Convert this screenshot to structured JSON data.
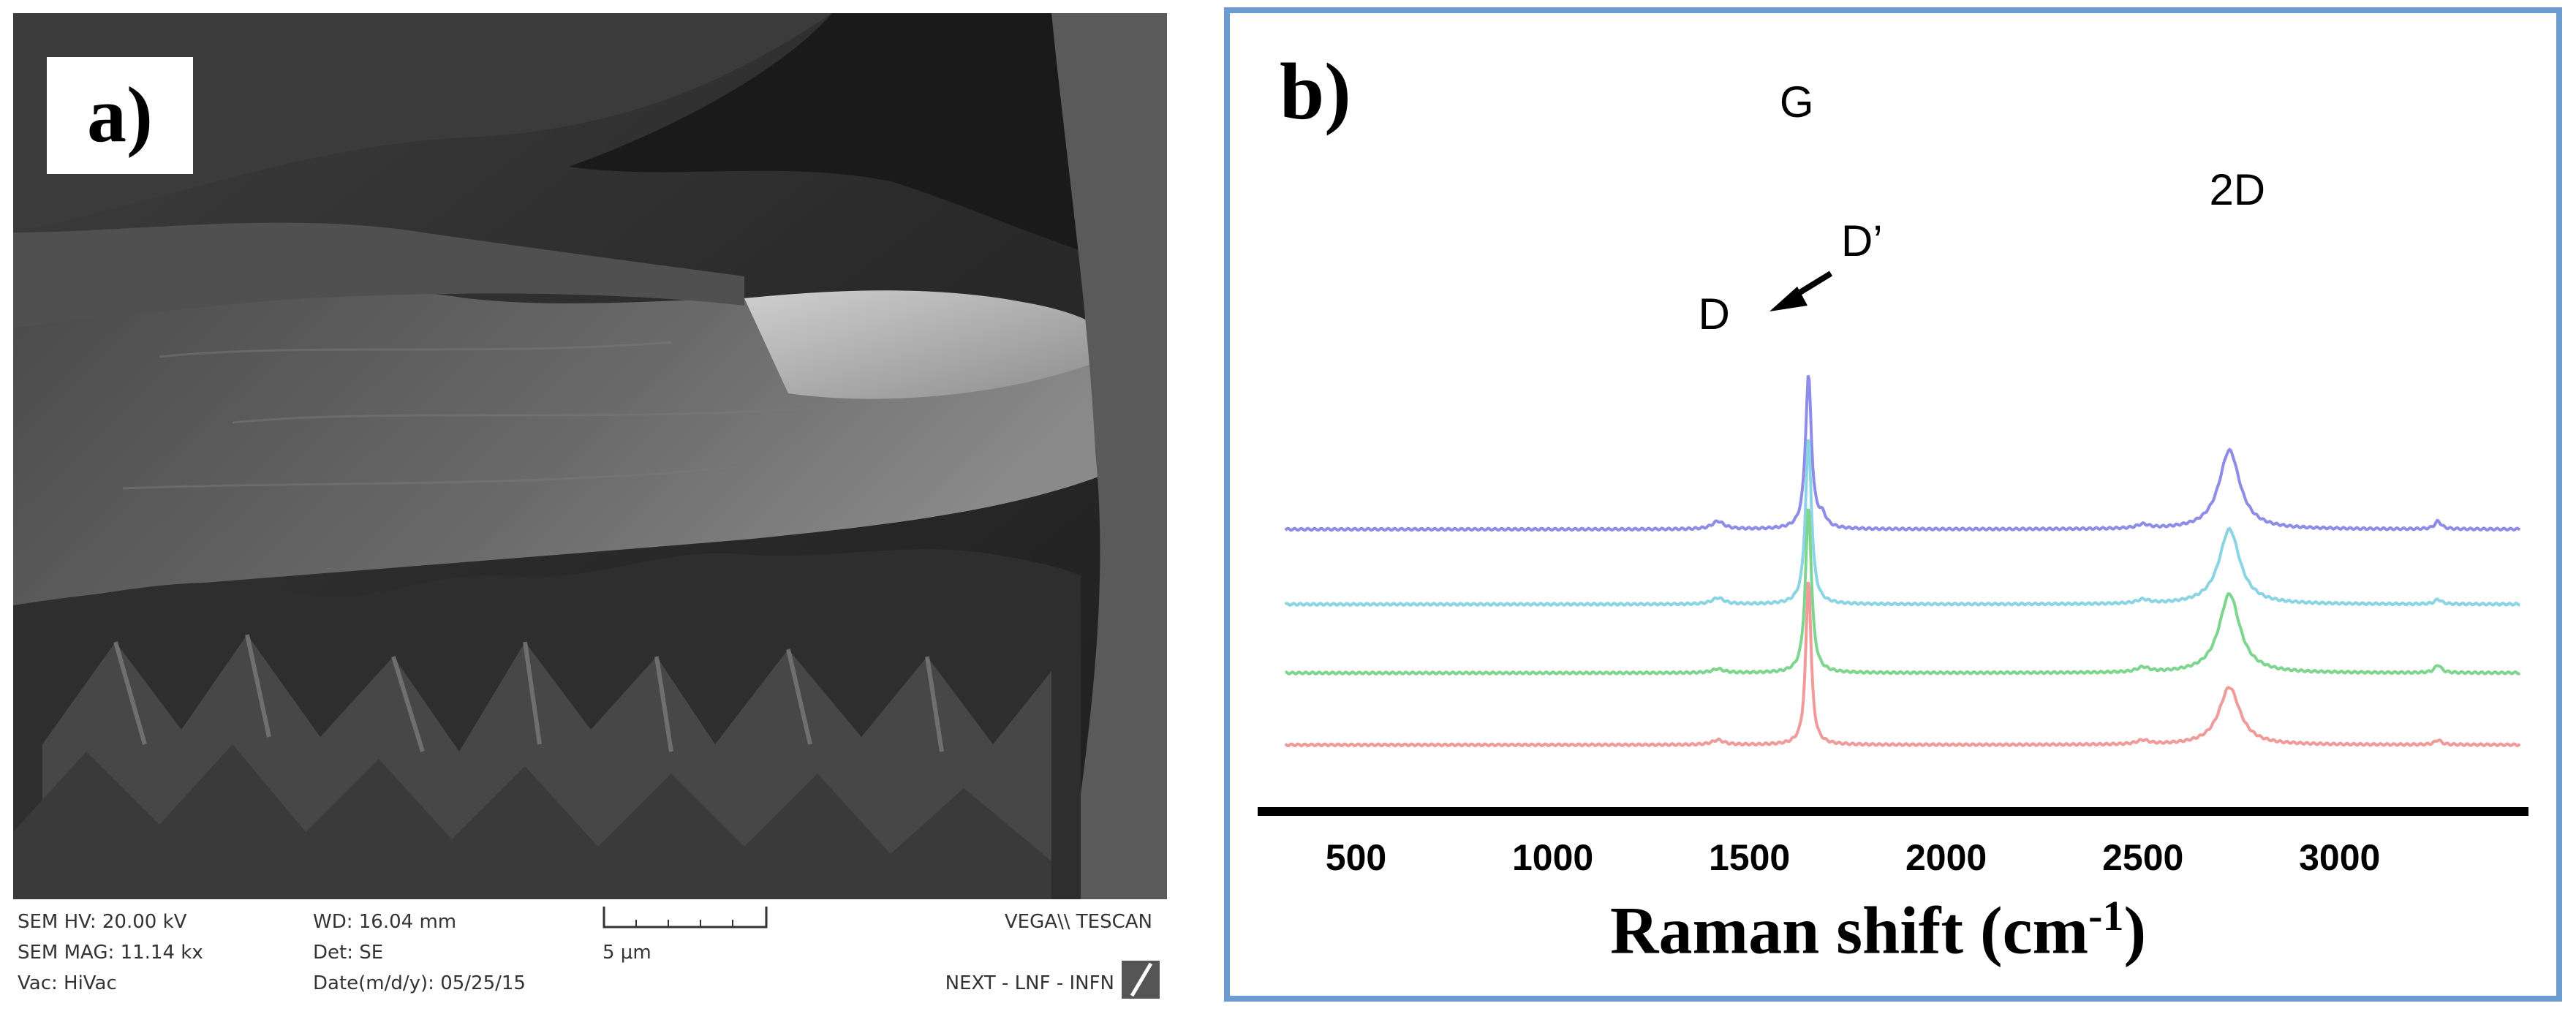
{
  "panel_a": {
    "label": "a)",
    "sem_info": {
      "hv": "SEM HV: 20.00 kV",
      "wd": "WD: 16.04 mm",
      "brand": "VEGA\\\\ TESCAN",
      "mag": "SEM MAG: 11.14 kx",
      "det": "Det: SE",
      "scale": "5 μm",
      "vac": "Vac: HiVac",
      "date": "Date(m/d/y): 05/25/15",
      "lab": "NEXT - LNF - INFN"
    },
    "scale_bar_fraction_of_image_width": 0.14
  },
  "panel_b": {
    "label": "b)",
    "xlabel": "Raman shift (cm",
    "xlabel_sup": "-1",
    "xlabel_close": ")",
    "peak_labels": {
      "g": "G",
      "d": "D",
      "d_prime": "D’",
      "two_d": "2D"
    }
  },
  "chart_data": {
    "type": "line",
    "xlabel": "Raman shift (cm-1)",
    "ylabel": "",
    "xlim": [
      250,
      3480
    ],
    "xticks": [
      500,
      1000,
      1500,
      2000,
      2500,
      3000
    ],
    "y_axis_shown": false,
    "grid": false,
    "peaks": [
      {
        "label": "D",
        "x": 1420
      },
      {
        "label": "G",
        "x": 1650
      },
      {
        "label": "D’",
        "x": 1680
      },
      {
        "label": "2D",
        "x": 2720
      }
    ],
    "series": [
      {
        "color": "#8d8de8",
        "baseline": 3.0,
        "peaks": [
          {
            "x": 1420,
            "h": 0.1,
            "w": 18
          },
          {
            "x": 1650,
            "h": 1.95,
            "w": 9
          },
          {
            "x": 1685,
            "h": 0.14,
            "w": 12
          },
          {
            "x": 2500,
            "h": 0.05,
            "w": 18
          },
          {
            "x": 2720,
            "h": 1.0,
            "w": 32
          },
          {
            "x": 3250,
            "h": 0.1,
            "w": 10
          }
        ]
      },
      {
        "color": "#8ad4e4",
        "baseline": 2.05,
        "peaks": [
          {
            "x": 1420,
            "h": 0.08,
            "w": 18
          },
          {
            "x": 1650,
            "h": 2.1,
            "w": 9
          },
          {
            "x": 2500,
            "h": 0.05,
            "w": 18
          },
          {
            "x": 2720,
            "h": 0.95,
            "w": 32
          },
          {
            "x": 3250,
            "h": 0.06,
            "w": 10
          }
        ]
      },
      {
        "color": "#7ed68e",
        "baseline": 1.18,
        "peaks": [
          {
            "x": 1420,
            "h": 0.05,
            "w": 18
          },
          {
            "x": 1650,
            "h": 2.1,
            "w": 9
          },
          {
            "x": 2500,
            "h": 0.06,
            "w": 18
          },
          {
            "x": 2720,
            "h": 1.0,
            "w": 32
          },
          {
            "x": 3250,
            "h": 0.1,
            "w": 10
          }
        ]
      },
      {
        "color": "#f19a9a",
        "baseline": 0.27,
        "peaks": [
          {
            "x": 1420,
            "h": 0.06,
            "w": 18
          },
          {
            "x": 1650,
            "h": 2.1,
            "w": 8
          },
          {
            "x": 2500,
            "h": 0.05,
            "w": 18
          },
          {
            "x": 2720,
            "h": 0.73,
            "w": 32
          },
          {
            "x": 3250,
            "h": 0.06,
            "w": 10
          }
        ]
      }
    ]
  },
  "colors": {
    "border": "#6b9bd1",
    "axis": "#000000"
  }
}
